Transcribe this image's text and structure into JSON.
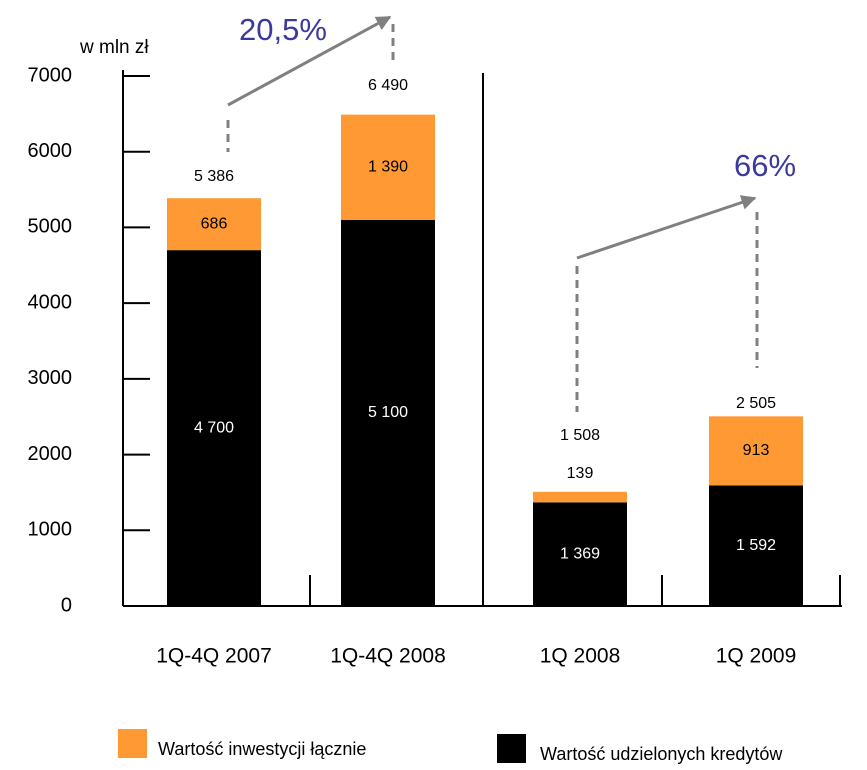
{
  "chart_data": {
    "type": "stacked-bar",
    "unit_label": "w mln zł",
    "categories": [
      "1Q-4Q 2007",
      "1Q-4Q 2008",
      "1Q 2008",
      "1Q 2009"
    ],
    "series": [
      {
        "name": "Wartość udzielonych kredytów",
        "color": "#000000",
        "values": [
          4700,
          5100,
          1369,
          1592
        ],
        "value_labels": [
          "4 700",
          "5 100",
          "1 369",
          "1 592"
        ]
      },
      {
        "name": "Wartość inwestycji łącznie",
        "color": "#ff9933",
        "values": [
          686,
          1390,
          139,
          913
        ],
        "value_labels": [
          "686",
          "1 390",
          "139",
          "913"
        ]
      }
    ],
    "totals": [
      5386,
      6490,
      1508,
      2505
    ],
    "total_labels": [
      "5 386",
      "6 490",
      "1 508",
      "2 505"
    ],
    "annotations": [
      "20,5%",
      "66%"
    ],
    "ylim": [
      0,
      7000
    ],
    "yticks": [
      0,
      1000,
      2000,
      3000,
      4000,
      5000,
      6000,
      7000
    ]
  }
}
